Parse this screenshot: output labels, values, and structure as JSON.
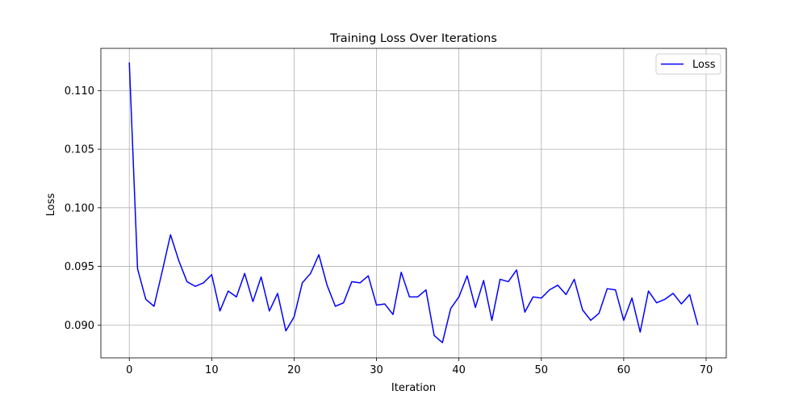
{
  "chart_data": {
    "type": "line",
    "title": "Training Loss Over Iterations",
    "xlabel": "Iteration",
    "ylabel": "Loss",
    "xlim": [
      -3.45,
      72.45
    ],
    "ylim": [
      0.0872,
      0.1136
    ],
    "xticks": [
      0,
      10,
      20,
      30,
      40,
      50,
      60,
      70
    ],
    "xtick_labels": [
      "0",
      "10",
      "20",
      "30",
      "40",
      "50",
      "60",
      "70"
    ],
    "yticks": [
      0.09,
      0.095,
      0.1,
      0.105,
      0.11
    ],
    "ytick_labels": [
      "0.090",
      "0.095",
      "0.100",
      "0.105",
      "0.110"
    ],
    "grid": true,
    "legend": "top-right",
    "series": [
      {
        "name": "Loss",
        "color": "#0000ff",
        "x": [
          0,
          1,
          2,
          3,
          4,
          5,
          6,
          7,
          8,
          9,
          10,
          11,
          12,
          13,
          14,
          15,
          16,
          17,
          18,
          19,
          20,
          21,
          22,
          23,
          24,
          25,
          26,
          27,
          28,
          29,
          30,
          31,
          32,
          33,
          34,
          35,
          36,
          37,
          38,
          39,
          40,
          41,
          42,
          43,
          44,
          45,
          46,
          47,
          48,
          49,
          50,
          51,
          52,
          53,
          54,
          55,
          56,
          57,
          58,
          59,
          60,
          61,
          62,
          63,
          64,
          65,
          66,
          67,
          68,
          69
        ],
        "values": [
          0.1124,
          0.0948,
          0.0922,
          0.0916,
          0.0946,
          0.0977,
          0.0955,
          0.0937,
          0.0933,
          0.0936,
          0.0943,
          0.0912,
          0.0929,
          0.0924,
          0.0944,
          0.092,
          0.0941,
          0.0912,
          0.0927,
          0.0895,
          0.0907,
          0.0936,
          0.0944,
          0.096,
          0.0934,
          0.0916,
          0.0919,
          0.0937,
          0.0936,
          0.0942,
          0.0917,
          0.0918,
          0.0909,
          0.0945,
          0.0924,
          0.0924,
          0.093,
          0.0891,
          0.0885,
          0.0914,
          0.0924,
          0.0942,
          0.0915,
          0.0938,
          0.0904,
          0.0939,
          0.0937,
          0.0947,
          0.0911,
          0.0924,
          0.0923,
          0.093,
          0.0934,
          0.0926,
          0.0939,
          0.0913,
          0.0904,
          0.091,
          0.0931,
          0.093,
          0.0904,
          0.0923,
          0.0894,
          0.0929,
          0.0919,
          0.0922,
          0.0927,
          0.0918,
          0.0926,
          0.09
        ]
      }
    ]
  }
}
